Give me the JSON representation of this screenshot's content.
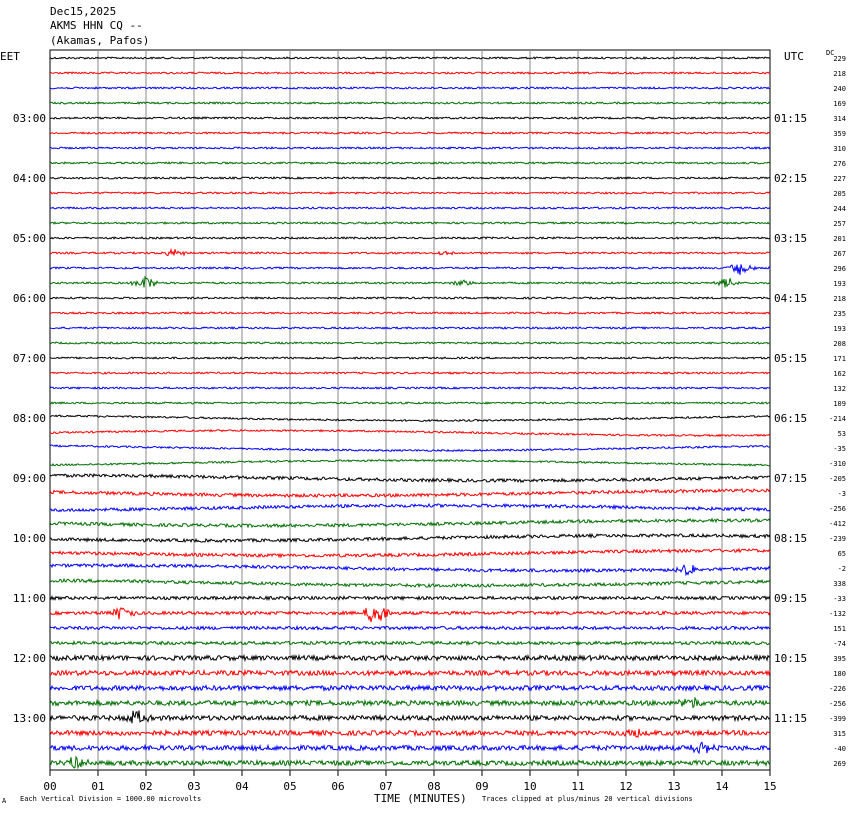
{
  "header": {
    "date": "Dec15,2025",
    "station": "AKMS HHN CQ --",
    "location": "(Akamas, Pafos)"
  },
  "left_tz": "EET",
  "right_tz": "UTC",
  "dc_label": "DC",
  "footer": {
    "left_mark": "A",
    "scale": "Each Vertical Division = 1000.00 microvolts",
    "xlabel": "TIME (MINUTES)",
    "clip": "Traces clipped at plus/minus 20 vertical divisions"
  },
  "colors": [
    "#000000",
    "#ff0000",
    "#0000ff",
    "#007000"
  ],
  "chart_data": {
    "type": "line",
    "title": "AKMS HHN CQ --",
    "xlabel": "TIME (MINUTES)",
    "x_ticks": [
      "00",
      "01",
      "02",
      "03",
      "04",
      "05",
      "06",
      "07",
      "08",
      "09",
      "10",
      "11",
      "12",
      "13",
      "14",
      "15"
    ],
    "xlim": [
      0,
      15
    ],
    "left_time_labels": [
      {
        "row": 4,
        "text": "03:00"
      },
      {
        "row": 8,
        "text": "04:00"
      },
      {
        "row": 12,
        "text": "05:00"
      },
      {
        "row": 16,
        "text": "06:00"
      },
      {
        "row": 20,
        "text": "07:00"
      },
      {
        "row": 24,
        "text": "08:00"
      },
      {
        "row": 28,
        "text": "09:00"
      },
      {
        "row": 32,
        "text": "10:00"
      },
      {
        "row": 36,
        "text": "11:00"
      },
      {
        "row": 40,
        "text": "12:00"
      },
      {
        "row": 44,
        "text": "13:00"
      }
    ],
    "right_time_labels": [
      {
        "row": 4,
        "text": "01:15"
      },
      {
        "row": 8,
        "text": "02:15"
      },
      {
        "row": 12,
        "text": "03:15"
      },
      {
        "row": 16,
        "text": "04:15"
      },
      {
        "row": 20,
        "text": "05:15"
      },
      {
        "row": 24,
        "text": "06:15"
      },
      {
        "row": 28,
        "text": "07:15"
      },
      {
        "row": 32,
        "text": "08:15"
      },
      {
        "row": 36,
        "text": "09:15"
      },
      {
        "row": 40,
        "text": "10:15"
      },
      {
        "row": 44,
        "text": "11:15"
      }
    ],
    "dc_offsets": [
      "229",
      "218",
      "240",
      "169",
      "314",
      "359",
      "310",
      "276",
      "227",
      "205",
      "244",
      "257",
      "201",
      "267",
      "296",
      "193",
      "218",
      "235",
      "193",
      "208",
      "171",
      "162",
      "132",
      "109",
      "-214",
      "53",
      "-35",
      "-310",
      "-205",
      "-3",
      "-256",
      "-412",
      "-239",
      "65",
      "-2",
      "338",
      "-33",
      "-132",
      "151",
      "-74",
      "395",
      "180",
      "-226",
      "-256",
      "-399",
      "315",
      "-40",
      "269"
    ],
    "events": [
      {
        "row": 13,
        "minute": 2.6,
        "amp": 4
      },
      {
        "row": 13,
        "minute": 8.2,
        "amp": 2
      },
      {
        "row": 14,
        "minute": 14.4,
        "amp": 8
      },
      {
        "row": 15,
        "minute": 2.0,
        "amp": 7
      },
      {
        "row": 15,
        "minute": 8.6,
        "amp": 3
      },
      {
        "row": 15,
        "minute": 14.1,
        "amp": 5
      },
      {
        "row": 34,
        "minute": 13.3,
        "amp": 6
      },
      {
        "row": 37,
        "minute": 1.5,
        "amp": 7
      },
      {
        "row": 37,
        "minute": 6.8,
        "amp": 12
      },
      {
        "row": 43,
        "minute": 13.3,
        "amp": 7
      },
      {
        "row": 44,
        "minute": 1.8,
        "amp": 7
      },
      {
        "row": 45,
        "minute": 12.2,
        "amp": 5
      },
      {
        "row": 46,
        "minute": 13.6,
        "amp": 6
      },
      {
        "row": 47,
        "minute": 0.6,
        "amp": 7
      }
    ]
  }
}
